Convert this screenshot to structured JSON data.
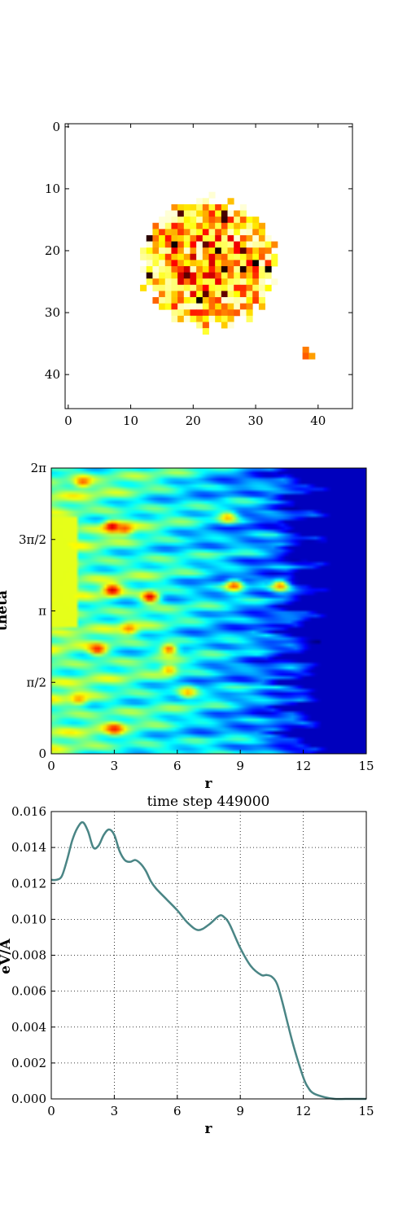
{
  "chart_data": [
    {
      "type": "heatmap",
      "title": "",
      "xlabel": "",
      "ylabel": "",
      "xticks": [
        "0",
        "10",
        "20",
        "30",
        "40"
      ],
      "yticks": [
        "0",
        "10",
        "20",
        "30",
        "40"
      ],
      "xlim": [
        -0.5,
        45.5
      ],
      "ylim": [
        45.5,
        -0.5
      ],
      "colormap": "hot_r",
      "description_of_values": "sparse cloud of cells with intensity 0-1 concentrated in a disc centred near (22,22) radius ~10, plus a tiny cluster near (38,36)",
      "cluster": {
        "center_x": 22.5,
        "center_y": 22,
        "radius": 10.5
      },
      "outlier": {
        "x": 38,
        "y": 36
      }
    },
    {
      "type": "heatmap",
      "title": "",
      "xlabel": "r",
      "ylabel": "theta",
      "xticks": [
        "0",
        "3",
        "6",
        "9",
        "12",
        "15"
      ],
      "yticks": [
        "0",
        "π/2",
        "π",
        "3π/2",
        "2π"
      ],
      "xlim": [
        0,
        15
      ],
      "ylim": [
        0,
        6.2832
      ],
      "colormap": "jet",
      "hotspots": [
        {
          "r": 1.5,
          "theta": 5.98,
          "v": 0.78
        },
        {
          "r": 2.9,
          "theta": 5.0,
          "v": 0.93
        },
        {
          "r": 3.5,
          "theta": 4.95,
          "v": 0.8
        },
        {
          "r": 2.9,
          "theta": 3.6,
          "v": 0.92
        },
        {
          "r": 4.7,
          "theta": 3.45,
          "v": 0.92
        },
        {
          "r": 2.2,
          "theta": 2.3,
          "v": 0.85
        },
        {
          "r": 5.6,
          "theta": 2.3,
          "v": 0.78
        },
        {
          "r": 3.7,
          "theta": 2.75,
          "v": 0.75
        },
        {
          "r": 3.0,
          "theta": 0.55,
          "v": 0.85
        },
        {
          "r": 8.7,
          "theta": 3.7,
          "v": 0.8
        },
        {
          "r": 10.9,
          "theta": 3.7,
          "v": 0.75
        },
        {
          "r": 8.4,
          "theta": 5.2,
          "v": 0.7
        },
        {
          "r": 5.6,
          "theta": 1.85,
          "v": 0.7
        },
        {
          "r": 6.5,
          "theta": 1.35,
          "v": 0.7
        },
        {
          "r": 1.3,
          "theta": 1.2,
          "v": 0.72
        }
      ],
      "front_r": 12.0
    },
    {
      "type": "line",
      "title": "time step 449000",
      "xlabel": "r",
      "ylabel": "eV/A",
      "xticks": [
        "0",
        "3",
        "6",
        "9",
        "12",
        "15"
      ],
      "yticks": [
        "0.000",
        "0.002",
        "0.004",
        "0.006",
        "0.008",
        "0.010",
        "0.012",
        "0.014",
        "0.016"
      ],
      "xlim": [
        0,
        15
      ],
      "ylim": [
        0,
        0.016
      ],
      "grid": true,
      "color": "#4a8585",
      "x": [
        0,
        0.25,
        0.5,
        0.75,
        1.0,
        1.25,
        1.5,
        1.75,
        2.0,
        2.25,
        2.5,
        2.75,
        3.0,
        3.25,
        3.5,
        3.75,
        4.0,
        4.25,
        4.5,
        4.75,
        5.0,
        5.5,
        6.0,
        6.5,
        7.0,
        7.5,
        8.0,
        8.25,
        8.5,
        9.0,
        9.5,
        10.0,
        10.25,
        10.5,
        10.75,
        11.0,
        11.5,
        12.0,
        12.25,
        12.5,
        13.0,
        13.5,
        14.0,
        14.5,
        15.0
      ],
      "values": [
        0.0122,
        0.0122,
        0.0124,
        0.0133,
        0.0144,
        0.0151,
        0.0154,
        0.0149,
        0.014,
        0.0141,
        0.0147,
        0.015,
        0.0147,
        0.0138,
        0.0133,
        0.0132,
        0.0133,
        0.0131,
        0.0127,
        0.0121,
        0.0117,
        0.0111,
        0.0105,
        0.0098,
        0.0094,
        0.0097,
        0.0102,
        0.0101,
        0.0097,
        0.0084,
        0.0074,
        0.0069,
        0.0069,
        0.0068,
        0.0064,
        0.0054,
        0.0031,
        0.0012,
        0.0006,
        0.0003,
        0.0001,
        0.0,
        0.0,
        0.0,
        0.0
      ]
    }
  ]
}
